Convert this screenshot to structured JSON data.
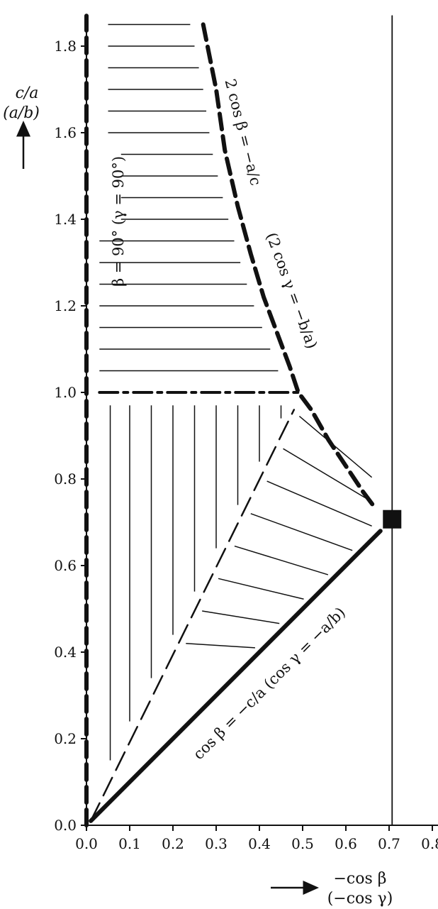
{
  "chart_data": {
    "type": "line",
    "xlim": [
      0.0,
      0.8
    ],
    "ylim": [
      0.0,
      1.85
    ],
    "x_ticks": [
      "0.0",
      "0.1",
      "0.2",
      "0.3",
      "0.4",
      "0.5",
      "0.6",
      "0.7",
      "0.8"
    ],
    "x_tick_values": [
      0.0,
      0.1,
      0.2,
      0.3,
      0.4,
      0.5,
      0.6,
      0.7,
      0.8
    ],
    "y_ticks": [
      "0.0",
      "0.2",
      "0.4",
      "0.6",
      "0.8",
      "1.0",
      "1.2",
      "1.4",
      "1.6",
      "1.8"
    ],
    "y_tick_values": [
      0.0,
      0.2,
      0.4,
      0.6,
      0.8,
      1.0,
      1.2,
      1.4,
      1.6,
      1.8
    ],
    "ylabel_line1": "c/a",
    "ylabel_line2": "(a/b)",
    "xlabel_line1": "−cos β",
    "xlabel_line2": "(−cos γ)",
    "annotations": {
      "left_axis": "β = 90°  (γ = 90°)",
      "upper_curve_1": "2 cos β = −a/c",
      "upper_curve_2": "(2 cos γ = −b/a)",
      "lower_line": "cos β = −c/a  (cos γ = −a/b)"
    },
    "boundaries": [
      {
        "name": "2 cos β = −a/c",
        "style": "heavy-dashed",
        "x": [
          0.27,
          0.3,
          0.32,
          0.35,
          0.38,
          0.41,
          0.44,
          0.47,
          0.49,
          0.52,
          0.56,
          0.6,
          0.64,
          0.67
        ],
        "y": [
          1.85,
          1.7,
          1.56,
          1.43,
          1.32,
          1.22,
          1.14,
          1.06,
          1.0,
          0.96,
          0.89,
          0.83,
          0.77,
          0.73
        ]
      },
      {
        "name": "cos β = −c/a",
        "style": "heavy-solid",
        "x": [
          0.01,
          0.68
        ],
        "y": [
          0.01,
          0.68
        ]
      },
      {
        "name": "c/a = 1",
        "style": "dash-dot",
        "x": [
          0.03,
          0.49
        ],
        "y": [
          1.0,
          1.0
        ]
      },
      {
        "name": "inner diagonal",
        "style": "dashed",
        "x": [
          0.01,
          0.48
        ],
        "y": [
          0.01,
          0.96
        ]
      },
      {
        "name": "β = 90°",
        "style": "heavy-dashed",
        "x": [
          0.0,
          0.0
        ],
        "y": [
          0.0,
          1.87
        ]
      },
      {
        "name": "−cos β = 0.707",
        "style": "thin-solid",
        "x": [
          0.707,
          0.707
        ],
        "y": [
          0.0,
          1.87
        ]
      }
    ],
    "special_point": {
      "marker": "square",
      "x": 0.707,
      "y": 0.707
    },
    "hatching": {
      "upper_horizontal_y": [
        1.05,
        1.1,
        1.15,
        1.2,
        1.25,
        1.3,
        1.35,
        1.4,
        1.45,
        1.5,
        1.55,
        1.6,
        1.65,
        1.7,
        1.75,
        1.8,
        1.85
      ],
      "lower_vertical_x": [
        0.055,
        0.1,
        0.15,
        0.2,
        0.25,
        0.3,
        0.35,
        0.4,
        0.45
      ]
    }
  }
}
